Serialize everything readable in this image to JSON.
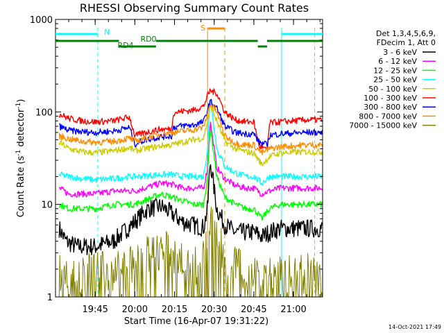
{
  "chart_data": {
    "type": "line",
    "title": "RHESSI Observing Summary Count Rates",
    "xlabel": "Start Time (16-Apr-07 19:31:22)",
    "ylabel": "Count Rate (s^-1 detector^-1)",
    "ylabel_parts": {
      "pre": "Count Rate (s",
      "sup1": "-1",
      "mid": " detector",
      "sup2": "-1",
      "post": ")"
    },
    "yscale": "log",
    "ylim": [
      1,
      1000
    ],
    "xlim_min_after_1930": [
      0,
      101
    ],
    "x_ticks": [
      {
        "label": "19:45",
        "min": 15
      },
      {
        "label": "20:00",
        "min": 30
      },
      {
        "label": "20:15",
        "min": 45
      },
      {
        "label": "20:30",
        "min": 60
      },
      {
        "label": "20:45",
        "min": 75
      },
      {
        "label": "21:00",
        "min": 90
      }
    ],
    "y_ticks": [
      {
        "label": "1",
        "value": 1
      },
      {
        "label": "10",
        "value": 10
      },
      {
        "label": "100",
        "value": 100
      },
      {
        "label": "1000",
        "value": 1000
      }
    ],
    "legend_header": [
      "Det 1,3,4,5,6,9,",
      "FDecim 1, Att 0"
    ],
    "series": [
      {
        "name": "3 - 6 keV",
        "color": "#000000",
        "points": [
          [
            1.4,
            5.5
          ],
          [
            4,
            4
          ],
          [
            8,
            3.5
          ],
          [
            15,
            3.5
          ],
          [
            22,
            4
          ],
          [
            30,
            6.5
          ],
          [
            35,
            9
          ],
          [
            40,
            9.5
          ],
          [
            44,
            8
          ],
          [
            48,
            6.5
          ],
          [
            52,
            6
          ],
          [
            56,
            5.6
          ],
          [
            57.5,
            9
          ],
          [
            58.5,
            30
          ],
          [
            61,
            9
          ],
          [
            64,
            6
          ],
          [
            68,
            5
          ],
          [
            72,
            5
          ],
          [
            75,
            5
          ],
          [
            78,
            4.5
          ],
          [
            81,
            5
          ],
          [
            85,
            5.5
          ],
          [
            95,
            5.5
          ],
          [
            101,
            5.5
          ]
        ]
      },
      {
        "name": "6 - 12 keV",
        "color": "#ff00ff",
        "points": [
          [
            1.4,
            15
          ],
          [
            5,
            13
          ],
          [
            10,
            13
          ],
          [
            15,
            13
          ],
          [
            22,
            14
          ],
          [
            28,
            14
          ],
          [
            30,
            14
          ],
          [
            40,
            17
          ],
          [
            44,
            16.5
          ],
          [
            48,
            15
          ],
          [
            52,
            15
          ],
          [
            56,
            15
          ],
          [
            57.5,
            25
          ],
          [
            58.5,
            80
          ],
          [
            61,
            25
          ],
          [
            64,
            19
          ],
          [
            68,
            16
          ],
          [
            72,
            15
          ],
          [
            75,
            15
          ],
          [
            78,
            13
          ],
          [
            81,
            14
          ],
          [
            85,
            15
          ],
          [
            95,
            15
          ],
          [
            101,
            15
          ]
        ]
      },
      {
        "name": "12 - 25 keV",
        "color": "#00ff00",
        "points": [
          [
            1.4,
            10
          ],
          [
            5,
            9
          ],
          [
            10,
            9
          ],
          [
            15,
            9
          ],
          [
            22,
            10
          ],
          [
            28,
            10
          ],
          [
            30,
            10
          ],
          [
            40,
            13
          ],
          [
            44,
            12
          ],
          [
            48,
            11
          ],
          [
            52,
            10
          ],
          [
            56,
            10
          ],
          [
            57.5,
            20
          ],
          [
            58.5,
            70
          ],
          [
            61,
            20
          ],
          [
            64,
            12
          ],
          [
            68,
            10
          ],
          [
            72,
            9
          ],
          [
            75,
            9
          ],
          [
            78,
            7
          ],
          [
            81,
            9
          ],
          [
            85,
            10
          ],
          [
            95,
            10
          ],
          [
            101,
            10
          ]
        ]
      },
      {
        "name": "25 - 50 keV",
        "color": "#00ffff",
        "points": [
          [
            1.4,
            21
          ],
          [
            5,
            20
          ],
          [
            10,
            19
          ],
          [
            15,
            18.5
          ],
          [
            22,
            19
          ],
          [
            28,
            20
          ],
          [
            30,
            20
          ],
          [
            40,
            21
          ],
          [
            44,
            21
          ],
          [
            48,
            20
          ],
          [
            52,
            20
          ],
          [
            56,
            20
          ],
          [
            57.5,
            40
          ],
          [
            58.5,
            150
          ],
          [
            61,
            40
          ],
          [
            64,
            26
          ],
          [
            68,
            22
          ],
          [
            72,
            20
          ],
          [
            75,
            20
          ],
          [
            78,
            17
          ],
          [
            81,
            20
          ],
          [
            85,
            20
          ],
          [
            95,
            20
          ],
          [
            101,
            20
          ]
        ]
      },
      {
        "name": "50 - 100 keV",
        "color": "#cccc00",
        "points": [
          [
            1.4,
            47
          ],
          [
            5,
            40
          ],
          [
            10,
            37
          ],
          [
            15,
            36
          ],
          [
            22,
            38
          ],
          [
            28,
            41
          ],
          [
            30,
            38
          ],
          [
            34,
            40
          ],
          [
            40,
            43
          ],
          [
            44,
            44
          ],
          [
            48,
            47
          ],
          [
            52,
            50
          ],
          [
            56,
            52
          ],
          [
            57.5,
            80
          ],
          [
            58.5,
            120
          ],
          [
            61,
            80
          ],
          [
            64,
            48
          ],
          [
            68,
            40
          ],
          [
            72,
            37
          ],
          [
            75,
            36
          ],
          [
            78,
            27
          ],
          [
            81,
            33
          ],
          [
            85,
            36
          ],
          [
            95,
            37
          ],
          [
            101,
            37
          ]
        ]
      },
      {
        "name": "100 - 300 keV",
        "color": "#ff0000",
        "points": [
          [
            1.4,
            95
          ],
          [
            5,
            85
          ],
          [
            10,
            80
          ],
          [
            15,
            78
          ],
          [
            22,
            80
          ],
          [
            28,
            88
          ],
          [
            30,
            55
          ],
          [
            34,
            60
          ],
          [
            40,
            65
          ],
          [
            44,
            65
          ],
          [
            44.5,
            98
          ],
          [
            48,
            102
          ],
          [
            52,
            104
          ],
          [
            56,
            115
          ],
          [
            57.5,
            150
          ],
          [
            58.5,
            170
          ],
          [
            61,
            160
          ],
          [
            64,
            100
          ],
          [
            68,
            82
          ],
          [
            72,
            78
          ],
          [
            75,
            78
          ],
          [
            77,
            42
          ],
          [
            78,
            42
          ],
          [
            80,
            38
          ],
          [
            81,
            76
          ],
          [
            85,
            78
          ],
          [
            95,
            82
          ],
          [
            101,
            82
          ]
        ]
      },
      {
        "name": "300 - 800 keV",
        "color": "#0000ff",
        "points": [
          [
            1.4,
            70
          ],
          [
            5,
            63
          ],
          [
            10,
            61
          ],
          [
            15,
            60
          ],
          [
            22,
            62
          ],
          [
            28,
            68
          ],
          [
            30,
            45
          ],
          [
            34,
            50
          ],
          [
            40,
            54
          ],
          [
            44,
            55
          ],
          [
            44.5,
            68
          ],
          [
            48,
            71
          ],
          [
            52,
            72
          ],
          [
            56,
            78
          ],
          [
            57.5,
            105
          ],
          [
            58.5,
            130
          ],
          [
            61,
            110
          ],
          [
            64,
            70
          ],
          [
            68,
            60
          ],
          [
            72,
            58
          ],
          [
            75,
            58
          ],
          [
            77,
            47
          ],
          [
            78,
            46
          ],
          [
            80,
            44
          ],
          [
            81,
            56
          ],
          [
            85,
            58
          ],
          [
            95,
            60
          ],
          [
            101,
            60
          ]
        ]
      },
      {
        "name": "800 - 7000 keV",
        "color": "#ff8c00",
        "points": [
          [
            1.4,
            55
          ],
          [
            5,
            51
          ],
          [
            10,
            48
          ],
          [
            15,
            47
          ],
          [
            22,
            48
          ],
          [
            28,
            52
          ],
          [
            30,
            48
          ],
          [
            34,
            52
          ],
          [
            40,
            58
          ],
          [
            44,
            60
          ],
          [
            48,
            62
          ],
          [
            52,
            64
          ],
          [
            56,
            68
          ],
          [
            57.5,
            95
          ],
          [
            58.5,
            125
          ],
          [
            61,
            100
          ],
          [
            64,
            55
          ],
          [
            68,
            46
          ],
          [
            72,
            44
          ],
          [
            75,
            44
          ],
          [
            78,
            36
          ],
          [
            81,
            40
          ],
          [
            85,
            42
          ],
          [
            95,
            44
          ],
          [
            101,
            44
          ]
        ]
      },
      {
        "name": "7000 - 15000 keV",
        "color": "#808000",
        "points": [
          [
            1.4,
            1.8
          ],
          [
            10,
            1.8
          ],
          [
            20,
            1.9
          ],
          [
            30,
            2.3
          ],
          [
            35,
            2.8
          ],
          [
            40,
            3.3
          ],
          [
            45,
            2.8
          ],
          [
            50,
            2.3
          ],
          [
            55,
            2
          ],
          [
            57.5,
            4
          ],
          [
            59,
            6
          ],
          [
            61,
            5
          ],
          [
            64,
            2.5
          ],
          [
            70,
            2
          ],
          [
            80,
            1.9
          ],
          [
            90,
            1.8
          ],
          [
            101,
            1.8
          ]
        ]
      }
    ],
    "annotations": {
      "N": {
        "label": "N",
        "color": "#00ffff",
        "segments": [
          [
            0,
            16
          ],
          [
            85.5,
            101
          ]
        ],
        "markers_min": [
          0,
          16,
          85.5,
          98
        ]
      },
      "S": {
        "label": "S",
        "color": "#ff8c00",
        "segment": [
          57.5,
          64
        ],
        "markers_min": [
          57.5,
          64
        ]
      },
      "RD0": {
        "label": "RD0",
        "color": "#008000",
        "segments": [
          [
            0,
            24
          ],
          [
            38,
            76.5
          ],
          [
            80,
            101
          ]
        ]
      },
      "RD4": {
        "label": "RD4",
        "color": "#008000",
        "segments": [
          [
            24,
            38
          ],
          [
            76.5,
            80
          ]
        ]
      }
    }
  },
  "footer": {
    "timestamp": "14-Oct-2021 17:49"
  }
}
